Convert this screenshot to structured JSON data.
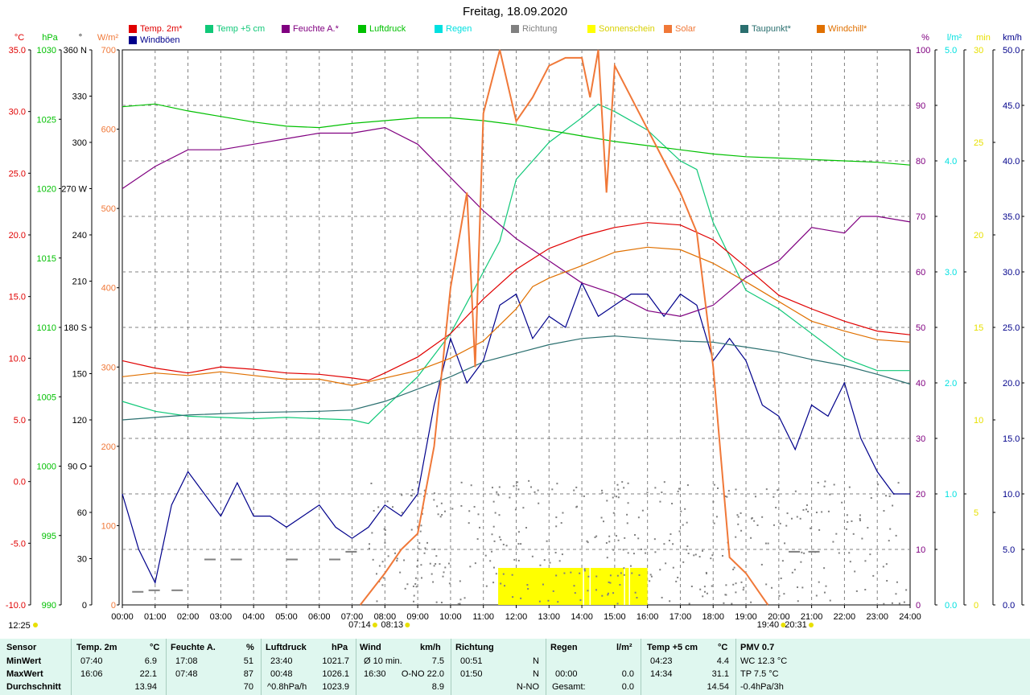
{
  "title": "Freitag, 18.09.2020",
  "legend": [
    {
      "label": "Temp. 2m*",
      "color": "#e00000"
    },
    {
      "label": "Temp +5 cm",
      "color": "#10c878"
    },
    {
      "label": "Feuchte A.*",
      "color": "#800080"
    },
    {
      "label": "Luftdruck",
      "color": "#00c000"
    },
    {
      "label": "Regen",
      "color": "#00e0e0"
    },
    {
      "label": "Richtung",
      "color": "#808080"
    },
    {
      "label": "Sonnenschein",
      "color": "#ffff00"
    },
    {
      "label": "Solar",
      "color": "#f07838"
    },
    {
      "label": "Taupunkt*",
      "color": "#2a6f6f"
    },
    {
      "label": "Windchill*",
      "color": "#e07000"
    },
    {
      "label": "Windböen",
      "color": "#00008b"
    }
  ],
  "axes": {
    "temp": {
      "unit": "°C",
      "color": "#e00000",
      "ticks": [
        "35.0",
        "30.0",
        "25.0",
        "20.0",
        "15.0",
        "10.0",
        "5.0",
        "0.0",
        "-5.0",
        "-10.0"
      ]
    },
    "press": {
      "unit": "hPa",
      "color": "#00c000",
      "ticks": [
        "1030",
        "1025",
        "1020",
        "1015",
        "1010",
        "1005",
        "1000",
        "995",
        "990"
      ]
    },
    "dir": {
      "unit": "°",
      "color": "#000000",
      "ticks": [
        "360 N",
        "330",
        "300",
        "270 W",
        "240",
        "210",
        "180 S",
        "150",
        "120",
        "90 O",
        "60",
        "30",
        "0"
      ]
    },
    "solar": {
      "unit": "W/m²",
      "color": "#f07838",
      "ticks": [
        "700",
        "600",
        "500",
        "400",
        "300",
        "200",
        "100",
        "0"
      ]
    },
    "hum": {
      "unit": "%",
      "color": "#800080",
      "ticks": [
        "100",
        "90",
        "80",
        "70",
        "60",
        "50",
        "40",
        "30",
        "20",
        "10",
        "0"
      ]
    },
    "rain": {
      "unit": "l/m²",
      "color": "#00e0e0",
      "ticks": [
        "5.0",
        "4.0",
        "3.0",
        "2.0",
        "1.0",
        "0.0"
      ]
    },
    "sun": {
      "unit": "min",
      "color": "#ffff00",
      "ticks": [
        "30",
        "25",
        "20",
        "15",
        "10",
        "5",
        "0"
      ]
    },
    "wind": {
      "unit": "km/h",
      "color": "#00008b",
      "ticks": [
        "50.0",
        "45.0",
        "40.0",
        "35.0",
        "30.0",
        "25.0",
        "20.0",
        "15.0",
        "10.0",
        "5.0",
        "0.0"
      ]
    }
  },
  "xticks": [
    "00:00",
    "01:00",
    "02:00",
    "03:00",
    "04:00",
    "05:00",
    "06:00",
    "07:00",
    "08:00",
    "09:00",
    "10:00",
    "11:00",
    "12:00",
    "13:00",
    "14:00",
    "15:00",
    "16:00",
    "17:00",
    "18:00",
    "19:00",
    "20:00",
    "21:00",
    "22:00",
    "23:00",
    "24:00"
  ],
  "markers": {
    "moonrise": "12:25",
    "sunrise": "07:14",
    "civil_dawn": "08:13",
    "sunset": "19:40",
    "civil_dusk": "20:31"
  },
  "chart_data": {
    "type": "line",
    "title": "Freitag, 18.09.2020",
    "x_unit": "hour",
    "xlim": [
      0,
      24
    ],
    "series": [
      {
        "name": "Temp. 2m*",
        "unit": "°C",
        "color": "#e00000",
        "x": [
          0,
          1,
          2,
          3,
          4,
          5,
          6,
          7,
          7.5,
          8,
          9,
          10,
          11,
          12,
          13,
          14,
          15,
          16,
          17,
          18,
          19,
          20,
          21,
          22,
          23,
          24
        ],
        "y": [
          9.8,
          9.2,
          8.8,
          9.3,
          9.1,
          8.8,
          8.7,
          8.4,
          8.2,
          8.8,
          10.1,
          12.0,
          14.8,
          17.2,
          18.9,
          19.9,
          20.6,
          21.0,
          20.8,
          19.6,
          17.4,
          15.1,
          14.0,
          13.0,
          12.2,
          11.9
        ]
      },
      {
        "name": "Temp +5 cm",
        "unit": "°C",
        "color": "#10c878",
        "x": [
          0,
          1,
          2,
          3,
          4,
          5,
          6,
          7,
          7.5,
          8,
          9,
          10,
          10.5,
          11,
          11.5,
          12,
          13,
          14,
          14.5,
          15,
          16,
          17,
          17.5,
          18,
          19,
          20,
          21,
          22,
          23,
          24
        ],
        "y": [
          6.5,
          5.7,
          5.3,
          5.2,
          5.1,
          5.2,
          5.1,
          5.0,
          4.7,
          6.0,
          8.5,
          12.0,
          14.5,
          17.0,
          19.5,
          24.5,
          27.5,
          29.5,
          30.6,
          30.0,
          28.5,
          26.0,
          25.3,
          21.0,
          15.5,
          14.0,
          12.0,
          10.0,
          9.0,
          9.0
        ]
      },
      {
        "name": "Feuchte A.*",
        "unit": "%",
        "color": "#800080",
        "x": [
          0,
          1,
          2,
          3,
          4,
          5,
          6,
          7,
          8,
          9,
          10,
          11,
          12,
          13,
          14,
          15,
          16,
          17,
          18,
          19,
          20,
          21,
          22,
          22.5,
          23,
          24
        ],
        "y": [
          75,
          79,
          82,
          82,
          83,
          84,
          85,
          85,
          86,
          83,
          77,
          71,
          66,
          62,
          58,
          56,
          53,
          52,
          54,
          59,
          62,
          68,
          67,
          70,
          70,
          69
        ]
      },
      {
        "name": "Luftdruck",
        "unit": "hPa",
        "color": "#00c000",
        "x": [
          0,
          1,
          2,
          3,
          4,
          5,
          6,
          7,
          8,
          9,
          10,
          11,
          12,
          13,
          14,
          15,
          16,
          17,
          18,
          19,
          20,
          21,
          22,
          23,
          24
        ],
        "y": [
          1025.9,
          1026.1,
          1025.6,
          1025.2,
          1024.8,
          1024.5,
          1024.4,
          1024.7,
          1024.9,
          1025.1,
          1025.1,
          1024.9,
          1024.6,
          1024.2,
          1023.8,
          1023.4,
          1023.1,
          1022.8,
          1022.5,
          1022.3,
          1022.2,
          1022.1,
          1022.0,
          1021.9,
          1021.7
        ]
      },
      {
        "name": "Taupunkt*",
        "unit": "°C",
        "color": "#2a6f6f",
        "x": [
          0,
          2,
          4,
          6,
          7,
          8,
          9,
          10,
          11,
          12,
          13,
          14,
          15,
          16,
          17,
          18,
          19,
          20,
          21,
          22,
          23,
          24
        ],
        "y": [
          5.0,
          5.4,
          5.6,
          5.7,
          5.8,
          6.5,
          7.5,
          8.5,
          9.7,
          10.4,
          11.1,
          11.6,
          11.8,
          11.6,
          11.4,
          11.3,
          10.9,
          10.5,
          9.9,
          9.4,
          8.7,
          7.9
        ]
      },
      {
        "name": "Windchill*",
        "unit": "°C",
        "color": "#e07000",
        "x": [
          0,
          1,
          2,
          3,
          4,
          5,
          6,
          7,
          8,
          9,
          10,
          11,
          12,
          12.5,
          13,
          14,
          15,
          16,
          17,
          18,
          19,
          20,
          21,
          22,
          23,
          24
        ],
        "y": [
          8.5,
          8.8,
          8.6,
          8.9,
          8.6,
          8.3,
          8.3,
          7.8,
          8.4,
          9.0,
          10.0,
          11.4,
          14.0,
          15.8,
          16.5,
          17.5,
          18.6,
          19.0,
          18.8,
          17.7,
          16.2,
          14.6,
          13.0,
          12.2,
          11.5,
          11.3
        ]
      },
      {
        "name": "Solar",
        "unit": "W/m²",
        "color": "#f07838",
        "x": [
          7.25,
          8,
          8.5,
          9,
          9.5,
          10,
          10.5,
          10.75,
          11,
          11.5,
          12,
          12.5,
          13,
          13.5,
          14,
          14.25,
          14.5,
          14.75,
          15,
          15.5,
          16,
          16.5,
          17,
          17.5,
          18,
          18.25,
          18.5,
          19,
          19.5,
          19.67
        ],
        "y": [
          0,
          40,
          70,
          90,
          200,
          400,
          520,
          300,
          620,
          700,
          610,
          640,
          680,
          690,
          690,
          640,
          700,
          520,
          680,
          640,
          600,
          560,
          520,
          470,
          300,
          180,
          60,
          40,
          10,
          0
        ]
      },
      {
        "name": "Windböen",
        "unit": "km/h",
        "color": "#00008b",
        "x": [
          0,
          0.5,
          1,
          1.5,
          2,
          2.5,
          3,
          3.5,
          4,
          4.5,
          5,
          5.5,
          6,
          6.5,
          7,
          7.5,
          8,
          8.5,
          9,
          9.5,
          10,
          10.5,
          11,
          11.5,
          12,
          12.5,
          13,
          13.5,
          14,
          14.5,
          15,
          15.5,
          16,
          16.5,
          17,
          17.5,
          18,
          18.5,
          19,
          19.5,
          20,
          20.5,
          21,
          21.5,
          22,
          22.5,
          23,
          23.5,
          24
        ],
        "y": [
          10,
          5,
          2,
          9,
          12,
          10,
          8,
          11,
          8,
          8,
          7,
          8,
          9,
          7,
          6,
          7,
          9,
          8,
          10,
          18,
          24,
          20,
          22,
          27,
          28,
          24,
          26,
          25,
          29,
          26,
          27,
          28,
          28,
          26,
          28,
          27,
          22,
          24,
          22,
          18,
          17,
          14,
          18,
          17,
          20,
          15,
          12,
          10,
          10
        ]
      }
    ],
    "sunshine_bars": {
      "unit": "min",
      "color": "#ffff00",
      "x_start": 11.45,
      "x_end": 16.0,
      "value_min": 5
    },
    "direction_points": {
      "unit": "°",
      "color": "#808080",
      "note": "scattered direction readings"
    }
  },
  "stats": {
    "headers": [
      "Sensor",
      "Temp. 2m",
      "°C",
      "Feuchte A.",
      "%",
      "Luftdruck",
      "hPa",
      "Wind",
      "km/h",
      "Richtung",
      "Regen",
      "l/m²",
      "Temp +5 cm",
      "°C",
      "PMV 0.7"
    ],
    "min": {
      "label": "MinWert",
      "t2_time": "07:40",
      "t2_val": "6.9",
      "hum_time": "17:08",
      "hum_val": "51",
      "press_time": "23:40",
      "press_val": "1021.7",
      "wind_label": "Ø 10 min.",
      "wind_val": "7.5",
      "dir_time": "00:51",
      "dir_val": "N",
      "rain_time": "",
      "rain_val": "",
      "t5_time": "04:23",
      "t5_val": "4.4",
      "pmv": "WC 12.3 °C"
    },
    "max": {
      "label": "MaxWert",
      "t2_time": "16:06",
      "t2_val": "22.1",
      "hum_time": "07:48",
      "hum_val": "87",
      "press_time": "00:48",
      "press_val": "1026.1",
      "wind_time": "16:30",
      "wind_val": "O-NO 22.0",
      "dir_time": "01:50",
      "dir_val": "N",
      "rain_time": "00:00",
      "rain_val": "0.0",
      "t5_time": "14:34",
      "t5_val": "31.1",
      "pmv": "TP 7.5 °C"
    },
    "avg": {
      "label": "Durchschnitt",
      "t2_val": "13.94",
      "hum_val": "70",
      "press_time": "^0.8hPa/h",
      "press_val": "1023.9",
      "wind_val": "8.9",
      "dir_val": "N-NO",
      "rain_label": "Gesamt:",
      "rain_val": "0.0",
      "t5_val": "14.54",
      "pmv": "-0.4hPa/3h"
    }
  }
}
